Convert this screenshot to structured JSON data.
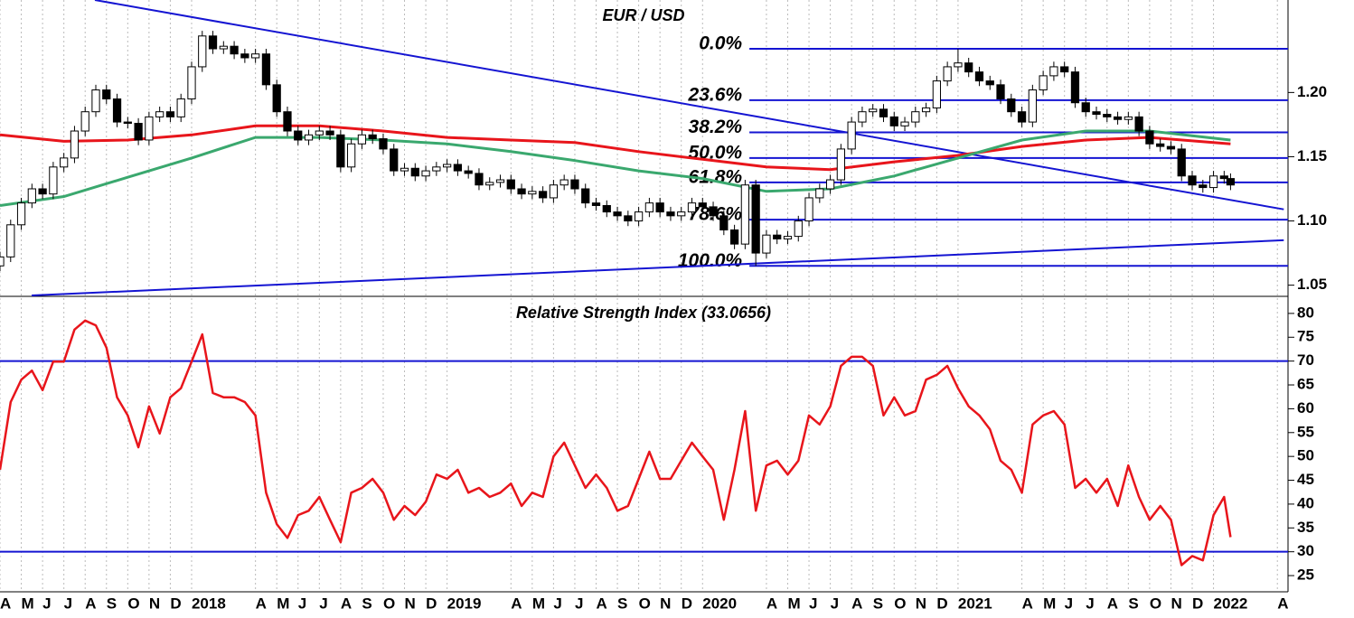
{
  "chart_data": [
    {
      "type": "candlestick",
      "title": "EUR / USD",
      "x": [
        3,
        3.5,
        4,
        4.5,
        5,
        5.5,
        6,
        6.5,
        7,
        7.5,
        8,
        8.5,
        9,
        9.5,
        10,
        10.5,
        11,
        11.5,
        12,
        12.5,
        13,
        13.5,
        14,
        14.5,
        15,
        15.5,
        16,
        16.5,
        17,
        17.5,
        18,
        18.5,
        19,
        19.5,
        20,
        20.5,
        21,
        21.5,
        22,
        22.5,
        23,
        23.5,
        24,
        24.5,
        25,
        25.5,
        26,
        26.5,
        27,
        27.5,
        28,
        28.5,
        29,
        29.5,
        30,
        30.5,
        31,
        31.5,
        32,
        32.5,
        33,
        33.5,
        34,
        34.5,
        35,
        35.5,
        36,
        36.5,
        37,
        37.5,
        38,
        38.5,
        39,
        39.5,
        40,
        40.5,
        41,
        41.5,
        42,
        42.5,
        43,
        43.5,
        44,
        44.5,
        45,
        45.5,
        46,
        46.5,
        47,
        47.5,
        48,
        48.5,
        49,
        49.5,
        50,
        50.5,
        51,
        51.5,
        52,
        52.5,
        53,
        53.5,
        54,
        54.5,
        55,
        55.5,
        56,
        56.5,
        57,
        57.5,
        58,
        58.5,
        59,
        59.5,
        60,
        60.5,
        60.8
      ],
      "open": [
        1.065,
        1.072,
        1.097,
        1.114,
        1.125,
        1.121,
        1.142,
        1.149,
        1.17,
        1.185,
        1.202,
        1.195,
        1.177,
        1.176,
        1.163,
        1.181,
        1.185,
        1.181,
        1.195,
        1.22,
        1.244,
        1.234,
        1.236,
        1.23,
        1.227,
        1.23,
        1.206,
        1.185,
        1.17,
        1.163,
        1.167,
        1.17,
        1.167,
        1.142,
        1.16,
        1.167,
        1.164,
        1.156,
        1.139,
        1.141,
        1.135,
        1.139,
        1.142,
        1.144,
        1.139,
        1.137,
        1.128,
        1.13,
        1.132,
        1.125,
        1.121,
        1.123,
        1.118,
        1.128,
        1.132,
        1.125,
        1.114,
        1.112,
        1.107,
        1.104,
        1.1,
        1.107,
        1.114,
        1.107,
        1.104,
        1.107,
        1.114,
        1.111,
        1.104,
        1.093,
        1.082,
        1.128,
        1.075,
        1.089,
        1.086,
        1.088,
        1.1,
        1.118,
        1.125,
        1.132,
        1.156,
        1.177,
        1.185,
        1.187,
        1.181,
        1.174,
        1.177,
        1.185,
        1.188,
        1.209,
        1.22,
        1.223,
        1.216,
        1.209,
        1.206,
        1.195,
        1.185,
        1.177,
        1.202,
        1.213,
        1.22,
        1.216,
        1.192,
        1.185,
        1.183,
        1.181,
        1.179,
        1.181,
        1.17,
        1.16,
        1.158,
        1.156,
        1.135,
        1.128,
        1.126,
        1.135,
        1.133
      ],
      "high": [
        1.076,
        1.101,
        1.118,
        1.129,
        1.129,
        1.146,
        1.153,
        1.174,
        1.189,
        1.206,
        1.206,
        1.199,
        1.181,
        1.18,
        1.185,
        1.189,
        1.189,
        1.199,
        1.224,
        1.248,
        1.248,
        1.24,
        1.24,
        1.234,
        1.234,
        1.234,
        1.21,
        1.189,
        1.174,
        1.171,
        1.174,
        1.174,
        1.171,
        1.164,
        1.171,
        1.171,
        1.168,
        1.16,
        1.145,
        1.145,
        1.143,
        1.146,
        1.148,
        1.148,
        1.143,
        1.141,
        1.134,
        1.136,
        1.136,
        1.129,
        1.127,
        1.127,
        1.132,
        1.136,
        1.136,
        1.129,
        1.118,
        1.116,
        1.111,
        1.108,
        1.111,
        1.118,
        1.118,
        1.111,
        1.111,
        1.118,
        1.118,
        1.115,
        1.108,
        1.097,
        1.132,
        1.132,
        1.093,
        1.093,
        1.092,
        1.104,
        1.122,
        1.129,
        1.136,
        1.16,
        1.181,
        1.189,
        1.191,
        1.191,
        1.185,
        1.181,
        1.189,
        1.192,
        1.213,
        1.224,
        1.234,
        1.227,
        1.22,
        1.213,
        1.21,
        1.199,
        1.189,
        1.206,
        1.217,
        1.224,
        1.224,
        1.22,
        1.196,
        1.189,
        1.187,
        1.185,
        1.185,
        1.185,
        1.174,
        1.164,
        1.162,
        1.16,
        1.139,
        1.132,
        1.139,
        1.139,
        1.137
      ],
      "low": [
        1.061,
        1.068,
        1.093,
        1.11,
        1.117,
        1.117,
        1.138,
        1.145,
        1.166,
        1.181,
        1.191,
        1.173,
        1.172,
        1.159,
        1.159,
        1.177,
        1.177,
        1.177,
        1.191,
        1.216,
        1.23,
        1.23,
        1.226,
        1.223,
        1.223,
        1.202,
        1.181,
        1.166,
        1.159,
        1.159,
        1.163,
        1.163,
        1.138,
        1.138,
        1.156,
        1.16,
        1.152,
        1.135,
        1.135,
        1.131,
        1.131,
        1.135,
        1.138,
        1.135,
        1.133,
        1.124,
        1.124,
        1.126,
        1.121,
        1.117,
        1.117,
        1.114,
        1.114,
        1.124,
        1.121,
        1.11,
        1.108,
        1.103,
        1.1,
        1.096,
        1.096,
        1.103,
        1.103,
        1.1,
        1.1,
        1.103,
        1.107,
        1.1,
        1.089,
        1.078,
        1.078,
        1.065,
        1.071,
        1.082,
        1.082,
        1.084,
        1.096,
        1.114,
        1.121,
        1.128,
        1.152,
        1.173,
        1.181,
        1.177,
        1.17,
        1.17,
        1.173,
        1.181,
        1.184,
        1.205,
        1.216,
        1.212,
        1.205,
        1.202,
        1.191,
        1.181,
        1.173,
        1.173,
        1.198,
        1.209,
        1.212,
        1.188,
        1.181,
        1.179,
        1.177,
        1.175,
        1.175,
        1.166,
        1.156,
        1.154,
        1.152,
        1.131,
        1.124,
        1.122,
        1.122,
        1.129,
        1.124
      ],
      "close": [
        1.072,
        1.097,
        1.114,
        1.125,
        1.121,
        1.142,
        1.149,
        1.17,
        1.185,
        1.202,
        1.195,
        1.177,
        1.176,
        1.163,
        1.181,
        1.185,
        1.181,
        1.195,
        1.22,
        1.244,
        1.234,
        1.236,
        1.23,
        1.227,
        1.23,
        1.206,
        1.185,
        1.17,
        1.163,
        1.167,
        1.17,
        1.167,
        1.142,
        1.16,
        1.167,
        1.164,
        1.156,
        1.139,
        1.141,
        1.135,
        1.139,
        1.142,
        1.144,
        1.139,
        1.137,
        1.128,
        1.13,
        1.132,
        1.125,
        1.121,
        1.123,
        1.118,
        1.128,
        1.132,
        1.125,
        1.114,
        1.112,
        1.107,
        1.104,
        1.1,
        1.107,
        1.114,
        1.107,
        1.104,
        1.107,
        1.114,
        1.111,
        1.104,
        1.093,
        1.082,
        1.128,
        1.075,
        1.089,
        1.086,
        1.088,
        1.1,
        1.118,
        1.125,
        1.132,
        1.156,
        1.177,
        1.185,
        1.187,
        1.181,
        1.174,
        1.177,
        1.185,
        1.188,
        1.209,
        1.22,
        1.223,
        1.216,
        1.209,
        1.206,
        1.195,
        1.185,
        1.177,
        1.202,
        1.213,
        1.22,
        1.216,
        1.192,
        1.185,
        1.183,
        1.181,
        1.179,
        1.181,
        1.17,
        1.16,
        1.158,
        1.156,
        1.135,
        1.128,
        1.126,
        1.135,
        1.133,
        1.128
      ],
      "up_color": "#ffffff",
      "down_color": "#000000",
      "overlays": [
        {
          "color": "#e8151b",
          "x": [
            3,
            6,
            9,
            12,
            15,
            18,
            21,
            24,
            27,
            30,
            33,
            36,
            39,
            42,
            45,
            48,
            51,
            54,
            57,
            60.8
          ],
          "values": [
            1.167,
            1.162,
            1.163,
            1.167,
            1.174,
            1.174,
            1.17,
            1.165,
            1.163,
            1.161,
            1.154,
            1.148,
            1.142,
            1.14,
            1.146,
            1.151,
            1.158,
            1.163,
            1.165,
            1.16
          ]
        },
        {
          "color": "#3aa86e",
          "x": [
            3,
            6,
            9,
            12,
            15,
            18,
            21,
            24,
            27,
            30,
            33,
            36,
            39,
            42,
            45,
            48,
            51,
            54,
            57,
            60.8
          ],
          "values": [
            1.112,
            1.119,
            1.134,
            1.149,
            1.165,
            1.165,
            1.163,
            1.16,
            1.154,
            1.147,
            1.139,
            1.133,
            1.123,
            1.125,
            1.135,
            1.149,
            1.163,
            1.17,
            1.17,
            1.163
          ]
        }
      ],
      "trendlines": [
        {
          "color": "#1414d2",
          "x": [
            7.46,
            63.3
          ],
          "values": [
            1.272,
            1.109
          ]
        },
        {
          "color": "#1414d2",
          "x": [
            4.49,
            63.3
          ],
          "values": [
            1.042,
            1.085
          ]
        }
      ],
      "level_color": "#1414d2",
      "level_start": 38.2,
      "levels": [
        {
          "label": "0.0%",
          "value": 1.234
        },
        {
          "label": "23.6%",
          "value": 1.194
        },
        {
          "label": "38.2%",
          "value": 1.169
        },
        {
          "label": "50.0%",
          "value": 1.149
        },
        {
          "label": "61.8%",
          "value": 1.13
        },
        {
          "label": "78.6%",
          "value": 1.101
        },
        {
          "label": "100.0%",
          "value": 1.065
        }
      ],
      "xlim": [
        3,
        63.5
      ],
      "ylim": [
        1.042,
        1.272
      ],
      "yticks": [
        {
          "value": 1.2,
          "label": "1.20"
        },
        1.15,
        {
          "value": 1.1,
          "label": "1.10"
        },
        1.05
      ]
    },
    {
      "type": "line",
      "title": "Relative Strength Index (33.0656)",
      "color": "#e8151b",
      "x": [
        3,
        3.5,
        4,
        4.5,
        5,
        5.5,
        6,
        6.5,
        7,
        7.5,
        8,
        8.5,
        9,
        9.5,
        10,
        10.5,
        11,
        11.5,
        12,
        12.5,
        13,
        13.5,
        14,
        14.5,
        15,
        15.5,
        16,
        16.5,
        17,
        17.5,
        18,
        18.5,
        19,
        19.5,
        20,
        20.5,
        21,
        21.5,
        22,
        22.5,
        23,
        23.5,
        24,
        24.5,
        25,
        25.5,
        26,
        26.5,
        27,
        27.5,
        28,
        28.5,
        29,
        29.5,
        30,
        30.5,
        31,
        31.5,
        32,
        32.5,
        33,
        33.5,
        34,
        34.5,
        35,
        35.5,
        36,
        36.5,
        37,
        37.5,
        38,
        38.5,
        39,
        39.5,
        40,
        40.5,
        41,
        41.5,
        42,
        42.5,
        43,
        43.5,
        44,
        44.5,
        45,
        45.5,
        46,
        46.5,
        47,
        47.5,
        48,
        48.5,
        49,
        49.5,
        50,
        50.5,
        51,
        51.5,
        52,
        52.5,
        53,
        53.5,
        54,
        54.5,
        55,
        55.5,
        56,
        56.5,
        57,
        57.5,
        58,
        58.5,
        59,
        59.5,
        60,
        60.5,
        60.8
      ],
      "values": [
        47.2,
        61.4,
        66.1,
        68.0,
        63.9,
        69.9,
        69.9,
        76.6,
        78.5,
        77.5,
        72.8,
        62.4,
        58.6,
        51.9,
        60.5,
        54.8,
        62.4,
        64.3,
        69.9,
        75.6,
        63.3,
        62.4,
        62.4,
        61.4,
        58.6,
        42.4,
        35.8,
        32.9,
        37.7,
        38.6,
        41.5,
        36.7,
        32.0,
        42.4,
        43.4,
        45.3,
        42.4,
        36.7,
        39.6,
        37.7,
        40.5,
        46.2,
        45.3,
        47.2,
        42.4,
        43.4,
        41.5,
        42.4,
        44.3,
        39.6,
        42.4,
        41.5,
        50.0,
        52.9,
        48.1,
        43.4,
        46.2,
        43.4,
        38.6,
        39.6,
        45.3,
        51.0,
        45.3,
        45.3,
        49.1,
        52.9,
        50.0,
        47.2,
        36.7,
        47.2,
        59.5,
        38.6,
        48.1,
        49.1,
        46.2,
        49.1,
        58.6,
        56.7,
        60.5,
        69.0,
        70.9,
        70.9,
        69.0,
        58.6,
        62.4,
        58.6,
        59.5,
        66.1,
        67.1,
        69.0,
        64.3,
        60.5,
        58.6,
        55.7,
        49.1,
        47.2,
        42.4,
        56.7,
        58.6,
        59.5,
        56.7,
        43.4,
        45.3,
        42.4,
        45.3,
        39.6,
        48.1,
        41.5,
        36.7,
        39.6,
        36.7,
        27.2,
        29.1,
        28.2,
        37.7,
        41.5,
        33.0656
      ],
      "level_color": "#1414d2",
      "levels": [
        70,
        30
      ],
      "xlim": [
        3,
        63.5
      ],
      "ylim": [
        21.6,
        83.2
      ],
      "yticks": [
        25,
        30,
        35,
        40,
        45,
        50,
        55,
        60,
        65,
        70,
        75,
        80
      ],
      "xticks": [
        {
          "value": 3,
          "label": "A"
        },
        {
          "value": 4,
          "label": "M"
        },
        {
          "value": 5,
          "label": "J"
        },
        {
          "value": 6,
          "label": "J"
        },
        {
          "value": 7,
          "label": "A"
        },
        {
          "value": 8,
          "label": "S"
        },
        {
          "value": 9,
          "label": "O"
        },
        {
          "value": 10,
          "label": "N"
        },
        {
          "value": 11,
          "label": "D"
        },
        {
          "value": 12,
          "label": "2018"
        },
        {
          "value": 15,
          "label": "A"
        },
        {
          "value": 16,
          "label": "M"
        },
        {
          "value": 17,
          "label": "J"
        },
        {
          "value": 18,
          "label": "J"
        },
        {
          "value": 19,
          "label": "A"
        },
        {
          "value": 20,
          "label": "S"
        },
        {
          "value": 21,
          "label": "O"
        },
        {
          "value": 22,
          "label": "N"
        },
        {
          "value": 23,
          "label": "D"
        },
        {
          "value": 24,
          "label": "2019"
        },
        {
          "value": 27,
          "label": "A"
        },
        {
          "value": 28,
          "label": "M"
        },
        {
          "value": 29,
          "label": "J"
        },
        {
          "value": 30,
          "label": "J"
        },
        {
          "value": 31,
          "label": "A"
        },
        {
          "value": 32,
          "label": "S"
        },
        {
          "value": 33,
          "label": "O"
        },
        {
          "value": 34,
          "label": "N"
        },
        {
          "value": 35,
          "label": "D"
        },
        {
          "value": 36,
          "label": "2020"
        },
        {
          "value": 39,
          "label": "A"
        },
        {
          "value": 40,
          "label": "M"
        },
        {
          "value": 41,
          "label": "J"
        },
        {
          "value": 42,
          "label": "J"
        },
        {
          "value": 43,
          "label": "A"
        },
        {
          "value": 44,
          "label": "S"
        },
        {
          "value": 45,
          "label": "O"
        },
        {
          "value": 46,
          "label": "N"
        },
        {
          "value": 47,
          "label": "D"
        },
        {
          "value": 48,
          "label": "2021"
        },
        {
          "value": 51,
          "label": "A"
        },
        {
          "value": 52,
          "label": "M"
        },
        {
          "value": 53,
          "label": "J"
        },
        {
          "value": 54,
          "label": "J"
        },
        {
          "value": 55,
          "label": "A"
        },
        {
          "value": 56,
          "label": "S"
        },
        {
          "value": 57,
          "label": "O"
        },
        {
          "value": 58,
          "label": "N"
        },
        {
          "value": 59,
          "label": "D"
        },
        {
          "value": 60,
          "label": "2022"
        },
        {
          "value": 63,
          "label": "A"
        }
      ]
    }
  ]
}
